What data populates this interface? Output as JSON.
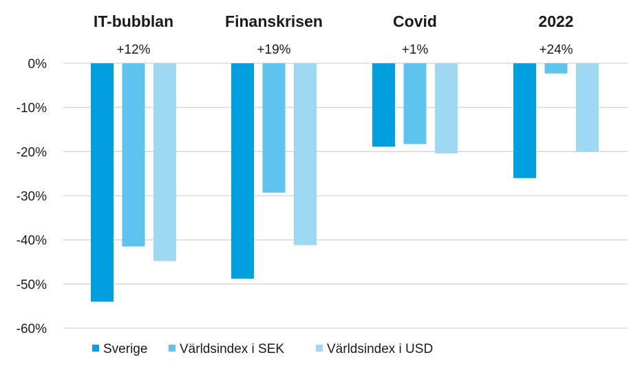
{
  "chart_data": {
    "type": "bar",
    "categories": [
      "IT-bubblan",
      "Finanskrisen",
      "Covid",
      "2022"
    ],
    "annotations": [
      "+12%",
      "+19%",
      "+1%",
      "+24%"
    ],
    "series": [
      {
        "name": "Sverige",
        "values": [
          -54,
          -48.8,
          -18.9,
          -26
        ],
        "color": "#009fdf"
      },
      {
        "name": "Världsindex i SEK",
        "values": [
          -41.5,
          -29.3,
          -18.3,
          -2.3
        ],
        "color": "#5ec4ee"
      },
      {
        "name": "Världsindex i USD",
        "values": [
          -44.8,
          -41.2,
          -20.4,
          -20
        ],
        "color": "#9dd9f3"
      }
    ],
    "yticks": [
      0,
      -10,
      -20,
      -30,
      -40,
      -50,
      -60
    ],
    "ytick_labels": [
      "0%",
      "-10%",
      "-20%",
      "-30%",
      "-40%",
      "-50%",
      "-60%"
    ],
    "ylim": [
      -60,
      0
    ],
    "grid": true,
    "legend": "bottom"
  }
}
